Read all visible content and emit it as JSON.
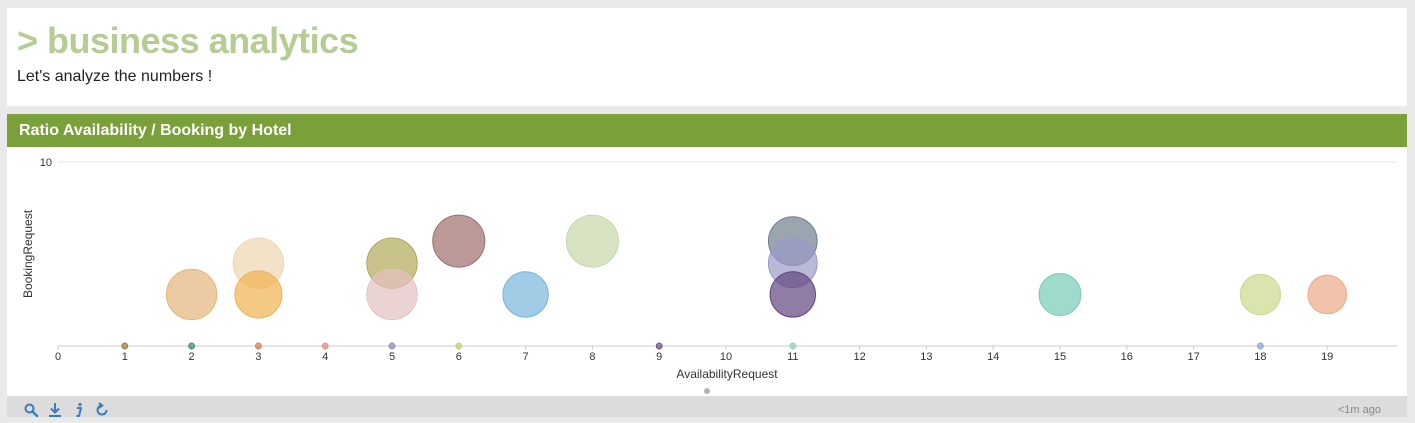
{
  "header": {
    "title": "> business analytics",
    "subtitle": "Let's analyze the numbers !"
  },
  "panel": {
    "title": "Ratio Availability / Booking by Hotel"
  },
  "footer": {
    "icons": [
      "search-icon",
      "download-icon",
      "info-icon",
      "refresh-icon"
    ],
    "updated": "<1m ago"
  },
  "colors": {
    "accent": "#7aa03a",
    "title": "#b5cc95"
  },
  "chart_data": {
    "type": "scatter",
    "subtype": "bubble",
    "xlabel": "AvailabilityRequest",
    "ylabel": "BookingRequest",
    "x_ticks": [
      "0",
      "1",
      "2",
      "3",
      "4",
      "5",
      "6",
      "7",
      "8",
      "9",
      "10",
      "11",
      "12",
      "13",
      "14",
      "15",
      "16",
      "17",
      "18",
      "19"
    ],
    "y_ticks": [
      "10"
    ],
    "xlim": [
      0,
      20
    ],
    "ylim": [
      0,
      10
    ],
    "grid": true,
    "points": [
      {
        "x": 3,
        "y": 4.5,
        "size": 3,
        "color": "#f0d6b0"
      },
      {
        "x": 2,
        "y": 2.8,
        "size": 3,
        "color": "#e6b57a"
      },
      {
        "x": 3,
        "y": 2.8,
        "size": 2.8,
        "color": "#efb24f"
      },
      {
        "x": 5,
        "y": 4.5,
        "size": 3,
        "color": "#b0a85a"
      },
      {
        "x": 5,
        "y": 2.8,
        "size": 3,
        "color": "#e4c0c0"
      },
      {
        "x": 6,
        "y": 5.7,
        "size": 3.1,
        "color": "#9e6e6a"
      },
      {
        "x": 7,
        "y": 2.8,
        "size": 2.7,
        "color": "#78b6dc"
      },
      {
        "x": 8,
        "y": 5.7,
        "size": 3.1,
        "color": "#c6d7a8"
      },
      {
        "x": 11,
        "y": 5.7,
        "size": 2.9,
        "color": "#707f8d"
      },
      {
        "x": 11,
        "y": 4.5,
        "size": 2.9,
        "color": "#9a9ac8"
      },
      {
        "x": 11,
        "y": 2.8,
        "size": 2.7,
        "color": "#62457f"
      },
      {
        "x": 15,
        "y": 2.8,
        "size": 2.5,
        "color": "#77cbb6"
      },
      {
        "x": 18,
        "y": 2.8,
        "size": 2.4,
        "color": "#cbd98a"
      },
      {
        "x": 19,
        "y": 2.8,
        "size": 2.3,
        "color": "#ebaa87"
      },
      {
        "x": 1,
        "y": 0,
        "size": 0.35,
        "color": "#9a7c3a"
      },
      {
        "x": 2,
        "y": 0,
        "size": 0.35,
        "color": "#3c8a6e"
      },
      {
        "x": 3,
        "y": 0,
        "size": 0.35,
        "color": "#d9784a"
      },
      {
        "x": 4,
        "y": 0,
        "size": 0.35,
        "color": "#e88c7c"
      },
      {
        "x": 5,
        "y": 0,
        "size": 0.35,
        "color": "#8d8db9"
      },
      {
        "x": 6,
        "y": 0,
        "size": 0.35,
        "color": "#bcd46f"
      },
      {
        "x": 9,
        "y": 0,
        "size": 0.35,
        "color": "#6c4e86"
      },
      {
        "x": 11,
        "y": 0,
        "size": 0.35,
        "color": "#8fd1bd"
      },
      {
        "x": 18,
        "y": 0,
        "size": 0.35,
        "color": "#8aa6dc"
      }
    ]
  }
}
